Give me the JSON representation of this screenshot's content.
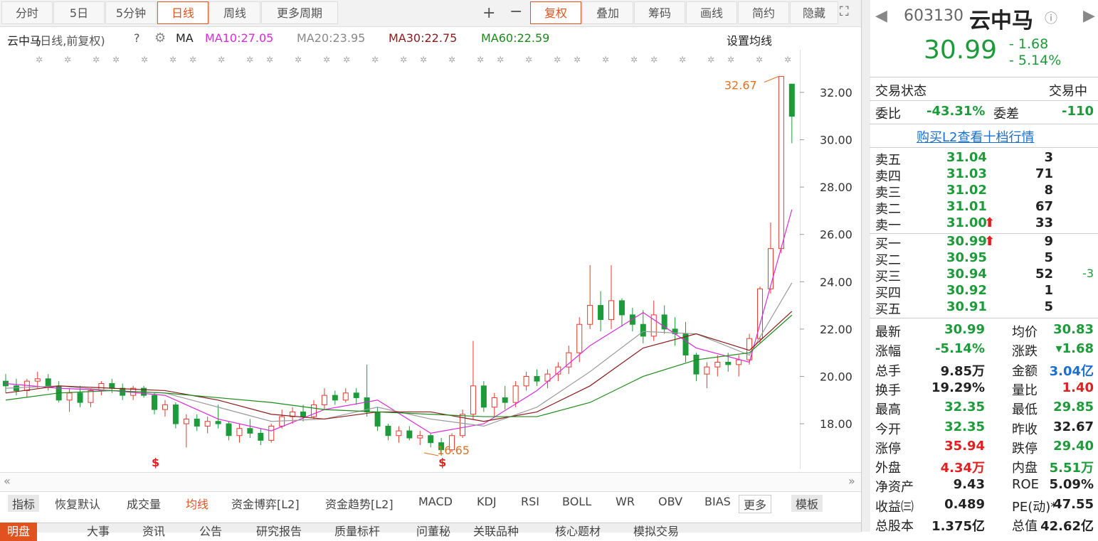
{
  "toolbar": {
    "periods": [
      "分时",
      "5日",
      "5分钟",
      "日线",
      "周线",
      "更多周期"
    ],
    "active": 3,
    "tools": [
      "复权",
      "叠加",
      "筹码",
      "画线",
      "简约",
      "隐藏"
    ]
  },
  "legend": {
    "name": "云中马",
    "mode": "(日线,前复权)",
    "help": "?",
    "ma": "MA",
    "ma10": "MA10:27.05",
    "ma20": "MA20:23.95",
    "ma30": "MA30:22.75",
    "ma60": "MA60:22.59",
    "settings": "设置均线"
  },
  "chart_data": {
    "type": "candlestick",
    "up_color": "#e8382f",
    "down_color": "#1d9b3a",
    "candles": [
      [
        19.8,
        20.1,
        19.3,
        19.6
      ],
      [
        19.6,
        19.9,
        19.2,
        19.4
      ],
      [
        19.4,
        19.9,
        19.1,
        19.8
      ],
      [
        19.8,
        20.2,
        19.5,
        19.9
      ],
      [
        19.9,
        20.1,
        19.4,
        19.6
      ],
      [
        19.6,
        19.8,
        18.9,
        19.0
      ],
      [
        19.0,
        19.5,
        18.5,
        19.3
      ],
      [
        19.3,
        19.6,
        18.7,
        18.9
      ],
      [
        18.9,
        19.5,
        18.7,
        19.4
      ],
      [
        19.4,
        19.8,
        19.2,
        19.7
      ],
      [
        19.7,
        19.9,
        19.3,
        19.5
      ],
      [
        19.5,
        19.7,
        19.0,
        19.2
      ],
      [
        19.2,
        19.6,
        19.0,
        19.5
      ],
      [
        19.5,
        19.6,
        19.1,
        19.2
      ],
      [
        19.2,
        19.3,
        18.4,
        18.6
      ],
      [
        18.6,
        19.0,
        18.3,
        18.8
      ],
      [
        18.8,
        18.9,
        17.8,
        18.0
      ],
      [
        18.0,
        18.4,
        17.0,
        18.2
      ],
      [
        18.2,
        18.4,
        17.7,
        17.9
      ],
      [
        17.9,
        18.3,
        17.6,
        18.1
      ],
      [
        18.1,
        18.8,
        17.8,
        18.0
      ],
      [
        18.0,
        18.1,
        17.3,
        17.5
      ],
      [
        17.5,
        18.0,
        17.2,
        17.8
      ],
      [
        17.8,
        18.2,
        17.4,
        17.6
      ],
      [
        17.6,
        17.8,
        17.1,
        17.3
      ],
      [
        17.3,
        18.0,
        17.2,
        17.9
      ],
      [
        17.9,
        18.6,
        17.8,
        18.3
      ],
      [
        18.3,
        18.7,
        18.0,
        18.5
      ],
      [
        18.5,
        18.8,
        18.1,
        18.3
      ],
      [
        18.3,
        19.0,
        18.2,
        18.8
      ],
      [
        18.8,
        19.5,
        18.6,
        19.2
      ],
      [
        19.2,
        19.4,
        18.8,
        19.0
      ],
      [
        19.0,
        19.5,
        18.9,
        19.3
      ],
      [
        19.3,
        19.5,
        18.8,
        19.1
      ],
      [
        19.1,
        20.5,
        18.3,
        18.5
      ],
      [
        18.5,
        18.7,
        17.7,
        17.9
      ],
      [
        17.9,
        18.0,
        17.3,
        17.5
      ],
      [
        17.5,
        17.9,
        17.2,
        17.7
      ],
      [
        17.7,
        17.9,
        17.3,
        17.4
      ],
      [
        17.4,
        17.7,
        17.1,
        17.5
      ],
      [
        17.5,
        17.6,
        17.0,
        17.2
      ],
      [
        17.2,
        17.4,
        16.65,
        16.9
      ],
      [
        16.9,
        17.6,
        16.8,
        17.5
      ],
      [
        17.5,
        18.6,
        17.4,
        18.4
      ],
      [
        18.4,
        21.5,
        18.2,
        19.6
      ],
      [
        19.6,
        19.8,
        18.5,
        18.7
      ],
      [
        18.7,
        19.3,
        18.3,
        19.1
      ],
      [
        19.1,
        19.6,
        18.6,
        18.9
      ],
      [
        18.9,
        19.8,
        18.7,
        19.6
      ],
      [
        19.6,
        20.2,
        19.4,
        20.0
      ],
      [
        20.0,
        20.3,
        19.6,
        19.8
      ],
      [
        19.8,
        20.3,
        19.5,
        20.1
      ],
      [
        20.1,
        20.6,
        19.8,
        20.4
      ],
      [
        20.4,
        21.3,
        20.1,
        21.0
      ],
      [
        21.0,
        22.5,
        20.6,
        22.2
      ],
      [
        22.2,
        24.7,
        22.0,
        23.0
      ],
      [
        23.0,
        23.6,
        21.9,
        22.4
      ],
      [
        22.4,
        24.7,
        22.0,
        23.2
      ],
      [
        23.2,
        23.3,
        22.1,
        22.6
      ],
      [
        22.6,
        22.9,
        21.9,
        22.2
      ],
      [
        22.2,
        22.8,
        21.4,
        21.7
      ],
      [
        21.7,
        23.2,
        21.5,
        22.6
      ],
      [
        22.6,
        23.0,
        21.8,
        22.0
      ],
      [
        22.0,
        22.5,
        21.3,
        21.8
      ],
      [
        21.8,
        22.3,
        20.6,
        20.9
      ],
      [
        20.9,
        21.0,
        19.8,
        20.1
      ],
      [
        20.1,
        20.6,
        19.5,
        20.4
      ],
      [
        20.4,
        20.9,
        20.0,
        20.6
      ],
      [
        20.6,
        21.0,
        20.2,
        20.5
      ],
      [
        20.5,
        20.9,
        20.0,
        20.7
      ],
      [
        20.7,
        21.8,
        20.5,
        21.6
      ],
      [
        21.6,
        23.8,
        21.4,
        23.7
      ],
      [
        23.7,
        26.5,
        23.5,
        25.4
      ],
      [
        25.4,
        32.67,
        25.2,
        32.67
      ],
      [
        32.35,
        32.35,
        29.85,
        30.99
      ]
    ],
    "series": [
      {
        "name": "MA10",
        "color": "#d82ad8",
        "x": [
          0,
          5,
          10,
          15,
          20,
          25,
          30,
          35,
          40,
          45,
          50,
          55,
          60,
          65,
          70,
          74
        ],
        "values": [
          19.7,
          19.5,
          19.4,
          19.2,
          18.2,
          17.7,
          18.6,
          19.0,
          17.6,
          18.0,
          19.4,
          21.3,
          22.7,
          21.2,
          20.6,
          27.05
        ]
      },
      {
        "name": "MA20",
        "color": "#999999",
        "x": [
          0,
          5,
          10,
          15,
          20,
          25,
          30,
          35,
          40,
          45,
          50,
          55,
          60,
          65,
          70,
          74
        ],
        "values": [
          19.5,
          19.6,
          19.4,
          19.3,
          18.7,
          18.1,
          18.2,
          18.7,
          18.2,
          17.9,
          18.7,
          20.2,
          21.9,
          21.8,
          20.9,
          23.95
        ]
      },
      {
        "name": "MA30",
        "color": "#8b1a1a",
        "x": [
          0,
          5,
          10,
          15,
          20,
          25,
          30,
          35,
          40,
          45,
          50,
          55,
          60,
          65,
          70,
          74
        ],
        "values": [
          19.3,
          19.6,
          19.5,
          19.4,
          19.0,
          18.4,
          18.2,
          18.5,
          18.5,
          18.1,
          18.5,
          19.6,
          21.2,
          21.8,
          21.1,
          22.75
        ]
      },
      {
        "name": "MA60",
        "color": "#1a8a1a",
        "x": [
          0,
          5,
          10,
          15,
          20,
          25,
          30,
          35,
          40,
          45,
          50,
          55,
          60,
          65,
          70,
          74
        ],
        "values": [
          19.0,
          19.3,
          19.4,
          19.3,
          19.1,
          18.9,
          18.6,
          18.5,
          18.4,
          18.3,
          18.3,
          18.9,
          20.0,
          20.7,
          21.0,
          22.59
        ]
      }
    ],
    "ylim": [
      16.08,
      33.65
    ],
    "yticks": [
      {
        "value": 18,
        "label": "18.00"
      },
      {
        "value": 20,
        "label": "20.00"
      },
      {
        "value": 22,
        "label": "22.00"
      },
      {
        "value": 24,
        "label": "24.00"
      },
      {
        "value": 26,
        "label": "26.00"
      },
      {
        "value": 28,
        "label": "28.00"
      },
      {
        "value": 30,
        "label": "30.00"
      },
      {
        "value": 32,
        "label": "32.00"
      }
    ],
    "annotations": [
      {
        "text": "32.67",
        "value": 32.67,
        "index": 73
      },
      {
        "text": "16.65",
        "value": 16.65,
        "index": 41
      }
    ],
    "markers": [
      {
        "text": "$",
        "index": 14
      },
      {
        "text": "$",
        "index": 41
      }
    ]
  },
  "quote": {
    "code": "603130",
    "name": "云中马",
    "price": "30.99",
    "change": "- 1.68",
    "pct": "- 5.14%"
  },
  "status": {
    "label": "交易状态",
    "value": "交易中"
  },
  "ratio": {
    "label1": "委比",
    "value1": "-43.31%",
    "label2": "委差",
    "value2": "-110"
  },
  "l2_link": "购买L2查看十档行情",
  "sells": [
    {
      "label": "卖五",
      "price": "31.04",
      "vol": "3"
    },
    {
      "label": "卖四",
      "price": "31.03",
      "vol": "71"
    },
    {
      "label": "卖三",
      "price": "31.02",
      "vol": "8"
    },
    {
      "label": "卖二",
      "price": "31.01",
      "vol": "67"
    },
    {
      "label": "卖一",
      "price": "31.00",
      "vol": "33",
      "arrow": true
    }
  ],
  "buys": [
    {
      "label": "买一",
      "price": "30.99",
      "vol": "9",
      "arrow": true
    },
    {
      "label": "买二",
      "price": "30.95",
      "vol": "5"
    },
    {
      "label": "买三",
      "price": "30.94",
      "vol": "52",
      "delta": "-3"
    },
    {
      "label": "买四",
      "price": "30.92",
      "vol": "1"
    },
    {
      "label": "买五",
      "price": "30.91",
      "vol": "5"
    }
  ],
  "stats": [
    [
      {
        "label": "最新",
        "value": "30.99",
        "color": "#1d9b3a"
      },
      {
        "label": "均价",
        "value": "30.83",
        "color": "#1d9b3a"
      }
    ],
    [
      {
        "label": "涨幅",
        "value": "-5.14%",
        "color": "#1d9b3a"
      },
      {
        "label": "涨跌",
        "value": "▾1.68",
        "color": "#1d9b3a"
      }
    ],
    [
      {
        "label": "总手",
        "value": "9.85万",
        "color": "#222222"
      },
      {
        "label": "金额",
        "value": "3.04亿",
        "color": "#1a6fd0"
      }
    ],
    [
      {
        "label": "换手",
        "value": "19.29%",
        "color": "#222222"
      },
      {
        "label": "量比",
        "value": "1.40",
        "color": "#e02020"
      }
    ],
    [
      {
        "label": "最高",
        "value": "32.35",
        "color": "#1d9b3a"
      },
      {
        "label": "最低",
        "value": "29.85",
        "color": "#1d9b3a"
      }
    ],
    [
      {
        "label": "今开",
        "value": "32.35",
        "color": "#1d9b3a"
      },
      {
        "label": "昨收",
        "value": "32.67",
        "color": "#222222"
      }
    ],
    [
      {
        "label": "涨停",
        "value": "35.94",
        "color": "#e02020"
      },
      {
        "label": "跌停",
        "value": "29.40",
        "color": "#1d9b3a"
      }
    ],
    [
      {
        "label": "外盘",
        "value": "4.34万",
        "color": "#e02020"
      },
      {
        "label": "内盘",
        "value": "5.51万",
        "color": "#1d9b3a"
      }
    ],
    [
      {
        "label": "净资产",
        "value": "9.43",
        "color": "#222222"
      },
      {
        "label": "ROE",
        "value": "5.09%",
        "color": "#222222"
      }
    ],
    [
      {
        "label": "收益㈢",
        "value": "0.489",
        "color": "#222222"
      },
      {
        "label": "PE(动)*",
        "value": "47.55",
        "color": "#222222"
      }
    ],
    [
      {
        "label": "总股本",
        "value": "1.375亿",
        "color": "#222222"
      },
      {
        "label": "总值",
        "value": "42.62亿",
        "color": "#222222"
      }
    ]
  ],
  "indicator_tabs": [
    "指标",
    "恢复默认",
    "成交量",
    "均线",
    "资金博弈[L2]",
    "资金趋势[L2]",
    "MACD",
    "KDJ",
    "RSI",
    "BOLL",
    "WR",
    "OBV",
    "BIAS",
    "更多",
    "模板"
  ],
  "bottom_tabs": [
    "明盘",
    "大事",
    "资讯",
    "公告",
    "研究报告",
    "质量标杆",
    "问董秘",
    "关联品种",
    "核心题材",
    "模拟交易"
  ]
}
